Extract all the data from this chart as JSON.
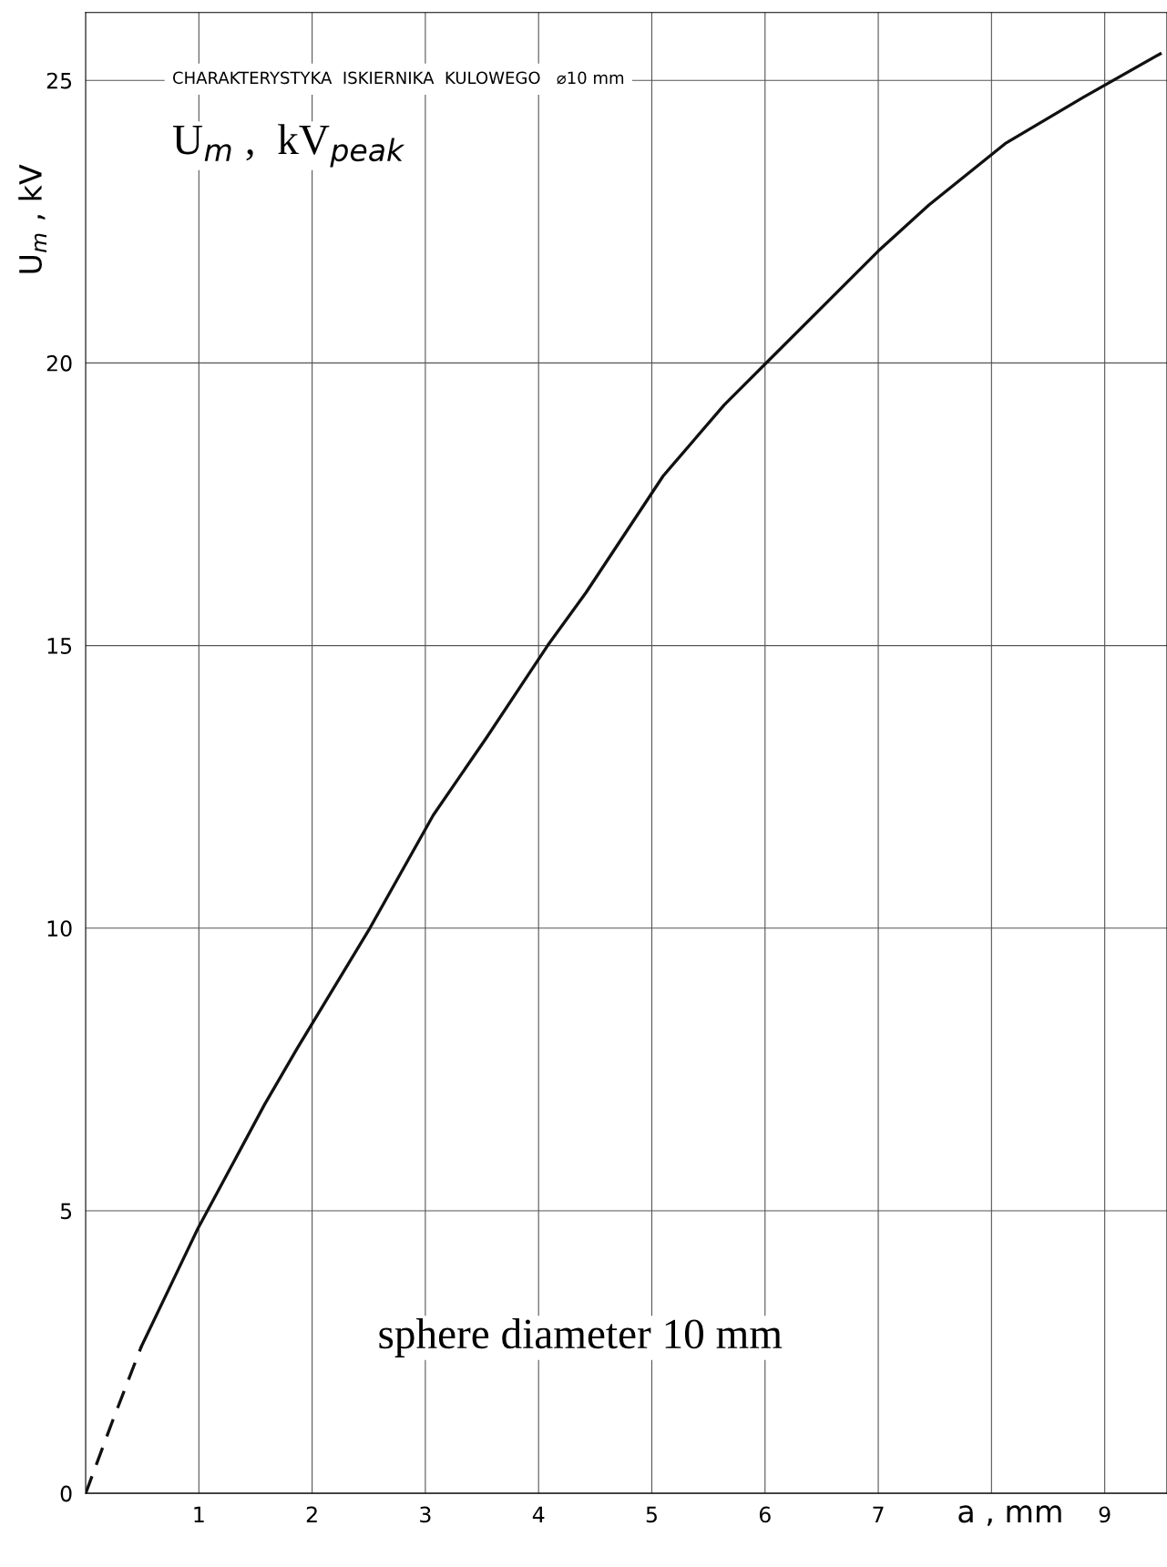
{
  "chart_data": {
    "type": "line",
    "xlabel": "a , mm",
    "ylabel": "U$_{m}$ , kV",
    "xlim": [
      0,
      9.55
    ],
    "ylim": [
      0,
      26.2
    ],
    "xticks": [
      1,
      2,
      3,
      4,
      5,
      6,
      7,
      {
        "value": 8,
        "label": null
      },
      9
    ],
    "yticks": [
      0,
      5,
      10,
      15,
      20,
      25
    ],
    "grid": true,
    "marker": "none",
    "series": [
      {
        "color": "#111111",
        "line_style": "dashed",
        "x": [
          0,
          0.23,
          0.49
        ],
        "values": [
          0,
          1.24,
          2.59
        ]
      },
      {
        "color": "#111111",
        "line_style": "solid",
        "x": [
          0.49,
          0.82,
          0.99,
          1.28,
          1.58,
          1.87,
          2.51,
          3.07,
          3.54,
          4.08,
          4.42,
          5.1,
          5.64,
          6.09,
          7.0,
          7.45,
          8.12,
          8.81,
          9.49
        ],
        "values": [
          2.59,
          3.97,
          4.68,
          5.76,
          6.88,
          7.88,
          10,
          12.0,
          13.37,
          15,
          15.94,
          18.0,
          19.26,
          20.16,
          21.98,
          22.8,
          23.88,
          24.7,
          25.47
        ]
      }
    ],
    "annotations": [
      "CHARAKTERYSTYKA  ISKIERNIKA  KULOWEGO   ⌀10 mm",
      "U$_{m}$ ,  kV$_{peak}$",
      "sphere diameter 10 mm"
    ]
  }
}
